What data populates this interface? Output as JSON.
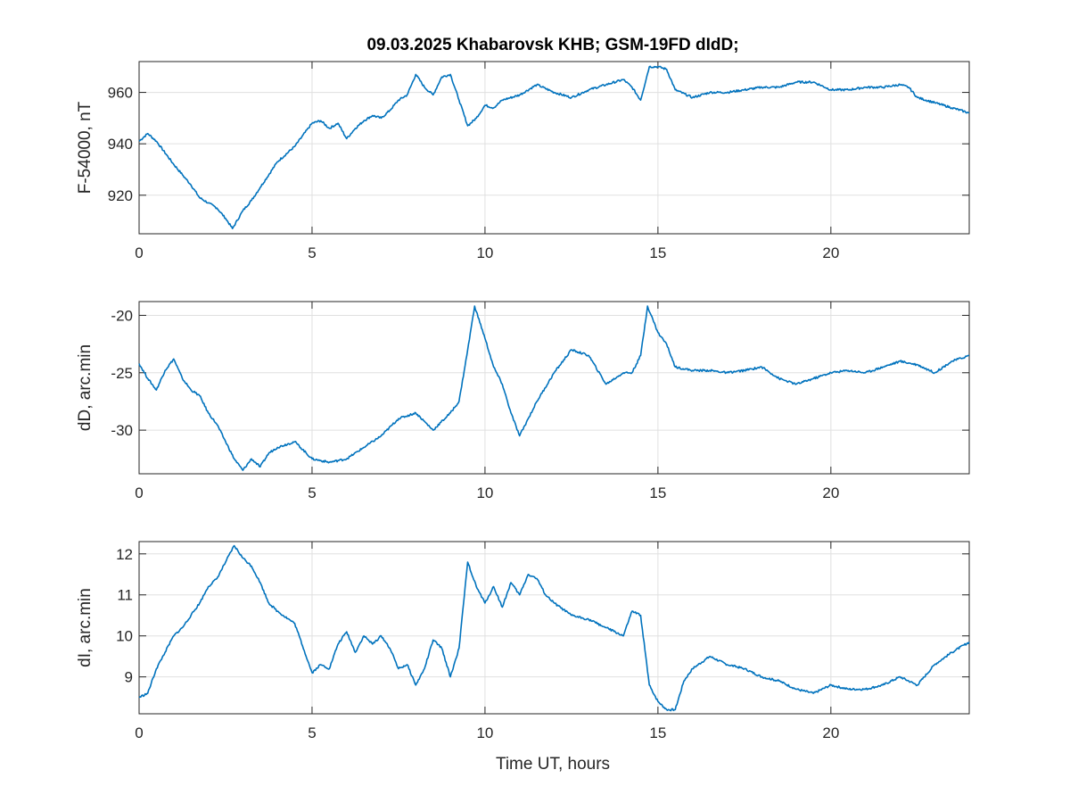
{
  "chart_data": {
    "title": "09.03.2025  Khabarovsk KHB; GSM-19FD dIdD;",
    "xlabel": "Time UT, hours",
    "panels": [
      {
        "type": "line",
        "ylabel": "F-54000, nT",
        "xlim": [
          0,
          24
        ],
        "ylim": [
          905,
          972
        ],
        "xticks": [
          "0",
          "5",
          "10",
          "15",
          "20"
        ],
        "yticks": [
          "920",
          "940",
          "960"
        ],
        "grid": true,
        "x": [
          0,
          0.25,
          0.5,
          1,
          1.25,
          1.5,
          1.75,
          2,
          2.25,
          2.5,
          2.7,
          3,
          3.25,
          3.5,
          4,
          4.5,
          5,
          5.25,
          5.5,
          5.75,
          6,
          6.25,
          6.5,
          6.75,
          7,
          7.25,
          7.5,
          7.75,
          8,
          8.25,
          8.5,
          8.75,
          9,
          9.25,
          9.5,
          9.75,
          10,
          10.25,
          10.5,
          11,
          11.5,
          12,
          12.5,
          13,
          13.5,
          14,
          14.25,
          14.5,
          14.75,
          15,
          15.25,
          15.5,
          16,
          16.5,
          17,
          17.5,
          18,
          18.5,
          19,
          19.5,
          20,
          20.5,
          21,
          21.5,
          22,
          22.25,
          22.5,
          23,
          23.5,
          24
        ],
        "y": [
          941,
          944,
          941,
          932,
          928,
          924,
          919,
          917,
          915,
          911,
          907,
          914,
          918,
          923,
          933,
          939,
          948,
          949,
          946,
          948,
          942,
          946,
          949,
          951,
          950,
          953,
          957,
          959,
          967,
          962,
          959,
          966,
          967,
          957,
          947,
          950,
          955,
          954,
          957,
          959,
          963,
          960,
          958,
          961,
          963,
          965,
          962,
          957,
          970,
          970,
          969,
          961,
          958,
          960,
          960,
          961,
          962,
          962,
          964,
          964,
          961,
          961,
          962,
          962,
          963,
          962,
          958,
          956,
          954,
          952
        ]
      },
      {
        "type": "line",
        "ylabel": "dD, arc.min",
        "xlim": [
          0,
          24
        ],
        "ylim": [
          -33.8,
          -18.8
        ],
        "xticks": [
          "0",
          "5",
          "10",
          "15",
          "20"
        ],
        "yticks": [
          "-20",
          "-25",
          "-30"
        ],
        "grid": true,
        "x": [
          0,
          0.25,
          0.5,
          0.75,
          1,
          1.25,
          1.5,
          1.75,
          2,
          2.25,
          2.5,
          2.75,
          3,
          3.25,
          3.5,
          3.75,
          4,
          4.5,
          5,
          5.5,
          6,
          6.5,
          7,
          7.5,
          8,
          8.5,
          9,
          9.25,
          9.5,
          9.7,
          10,
          10.25,
          10.5,
          10.75,
          11,
          11.25,
          11.5,
          12,
          12.5,
          13,
          13.5,
          14,
          14.25,
          14.5,
          14.7,
          15,
          15.25,
          15.5,
          16,
          16.5,
          17,
          17.5,
          18,
          18.5,
          19,
          19.5,
          20,
          20.5,
          21,
          21.5,
          22,
          22.5,
          23,
          23.5,
          24
        ],
        "y": [
          -24.2,
          -25.5,
          -26.5,
          -24.8,
          -23.8,
          -25.5,
          -26.5,
          -27,
          -28.5,
          -29.5,
          -31,
          -32.5,
          -33.5,
          -32.5,
          -33.2,
          -32,
          -31.5,
          -31,
          -32.5,
          -32.8,
          -32.5,
          -31.5,
          -30.5,
          -29,
          -28.5,
          -30,
          -28.5,
          -27.5,
          -23,
          -19.2,
          -22,
          -24.5,
          -26,
          -28.5,
          -30.5,
          -29,
          -27.5,
          -25,
          -23,
          -23.5,
          -26,
          -25,
          -25,
          -23.5,
          -19.2,
          -21.5,
          -22.5,
          -24.5,
          -24.8,
          -24.8,
          -25,
          -24.8,
          -24.5,
          -25.5,
          -26,
          -25.5,
          -25,
          -24.8,
          -25,
          -24.5,
          -24,
          -24.3,
          -25,
          -24,
          -23.5
        ]
      },
      {
        "type": "line",
        "ylabel": "dI, arc.min",
        "xlim": [
          0,
          24
        ],
        "ylim": [
          8.1,
          12.3
        ],
        "xticks": [
          "0",
          "5",
          "10",
          "15",
          "20"
        ],
        "yticks": [
          "12",
          "11",
          "10",
          "9"
        ],
        "grid": true,
        "x": [
          0,
          0.25,
          0.5,
          0.75,
          1,
          1.25,
          1.5,
          1.75,
          2,
          2.25,
          2.5,
          2.75,
          3,
          3.25,
          3.5,
          3.75,
          4,
          4.5,
          5,
          5.25,
          5.5,
          5.75,
          6,
          6.25,
          6.5,
          6.75,
          7,
          7.25,
          7.5,
          7.75,
          8,
          8.25,
          8.5,
          8.75,
          9,
          9.25,
          9.5,
          9.75,
          10,
          10.25,
          10.5,
          10.75,
          11,
          11.25,
          11.5,
          11.75,
          12,
          12.5,
          13,
          13.5,
          14,
          14.25,
          14.5,
          14.75,
          15,
          15.25,
          15.5,
          15.75,
          16,
          16.5,
          17,
          17.5,
          18,
          18.5,
          19,
          19.5,
          20,
          20.5,
          21,
          21.5,
          22,
          22.5,
          23,
          23.5,
          24
        ],
        "y": [
          8.5,
          8.6,
          9.2,
          9.6,
          10,
          10.2,
          10.5,
          10.8,
          11.2,
          11.4,
          11.8,
          12.2,
          11.9,
          11.7,
          11.3,
          10.8,
          10.6,
          10.3,
          9.1,
          9.3,
          9.2,
          9.8,
          10.1,
          9.6,
          10,
          9.8,
          10,
          9.7,
          9.2,
          9.3,
          8.8,
          9.2,
          9.9,
          9.7,
          9,
          9.7,
          11.8,
          11.2,
          10.8,
          11.2,
          10.7,
          11.3,
          11,
          11.5,
          11.4,
          11,
          10.8,
          10.5,
          10.4,
          10.2,
          10,
          10.6,
          10.5,
          8.8,
          8.4,
          8.2,
          8.2,
          8.9,
          9.2,
          9.5,
          9.3,
          9.2,
          9.0,
          8.9,
          8.7,
          8.6,
          8.8,
          8.7,
          8.7,
          8.8,
          9.0,
          8.8,
          9.3,
          9.6,
          9.85
        ]
      }
    ]
  }
}
